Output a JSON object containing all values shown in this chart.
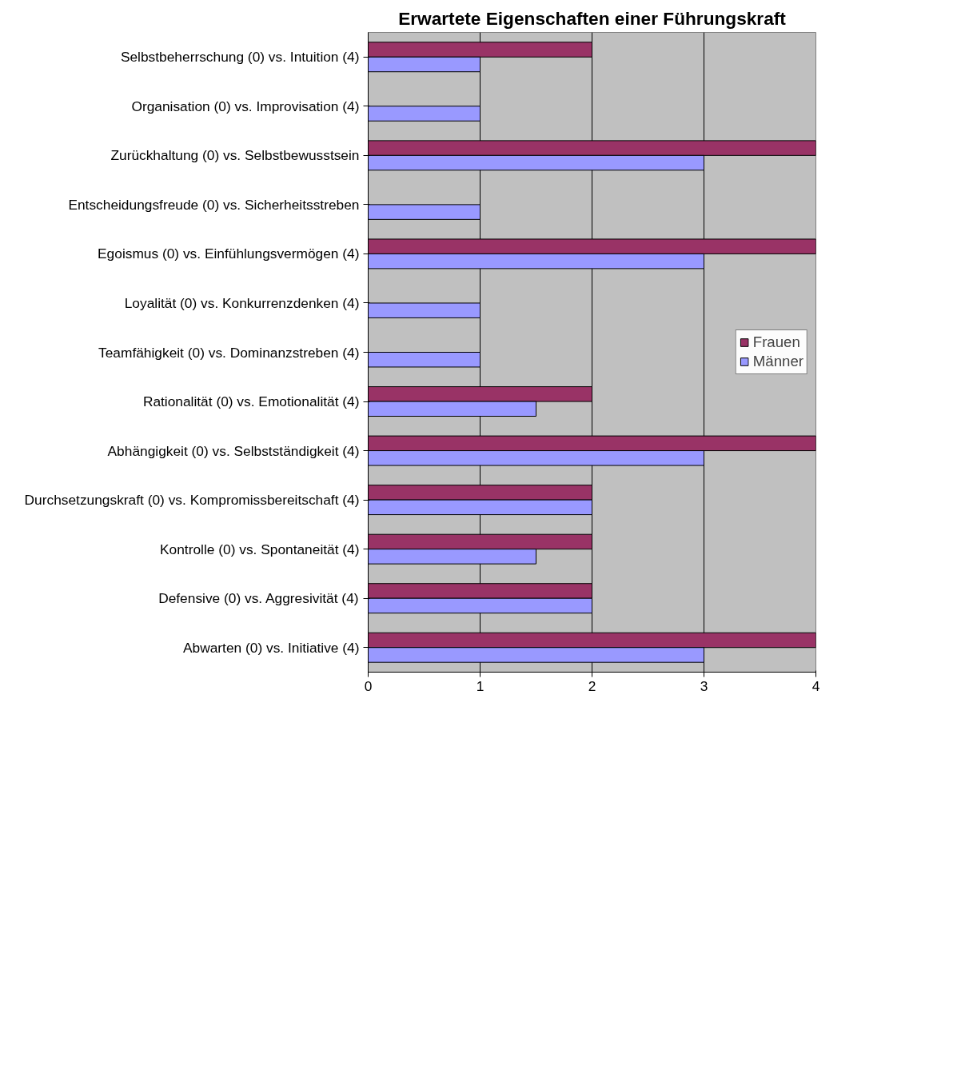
{
  "chart_data": {
    "type": "bar",
    "orientation": "horizontal",
    "title": "Erwartete Eigenschaften einer Führungskraft",
    "categories": [
      "Selbstbeherrschung (0) vs. Intuition (4)",
      "Organisation (0) vs. Improvisation (4)",
      "Zurückhaltung (0) vs. Selbstbewusstsein",
      "Entscheidungsfreude (0) vs. Sicherheitsstreben",
      "Egoismus (0) vs. Einfühlungsvermögen (4)",
      "Loyalität (0) vs. Konkurrenzdenken (4)",
      "Teamfähigkeit (0) vs. Dominanzstreben (4)",
      "Rationalität (0) vs. Emotionalität (4)",
      "Abhängigkeit (0) vs. Selbstständigkeit (4)",
      "Durchsetzungskraft (0) vs. Kompromissbereitschaft (4)",
      "Kontrolle (0) vs. Spontaneität (4)",
      "Defensive (0) vs. Aggresivität (4)",
      "Abwarten (0) vs. Initiative (4)"
    ],
    "series": [
      {
        "name": "Frauen",
        "color": "#993366",
        "values": [
          2,
          null,
          4,
          null,
          4,
          null,
          null,
          2,
          4,
          2,
          2,
          2,
          4
        ]
      },
      {
        "name": "Männer",
        "color": "#9999ff",
        "values": [
          1,
          1,
          3,
          1,
          3,
          1,
          1,
          1.5,
          3,
          2,
          1.5,
          2,
          3
        ]
      }
    ],
    "xlim": [
      0,
      4
    ],
    "xticks": [
      0,
      1,
      2,
      3,
      4
    ],
    "grid": "x",
    "legend": "right"
  }
}
